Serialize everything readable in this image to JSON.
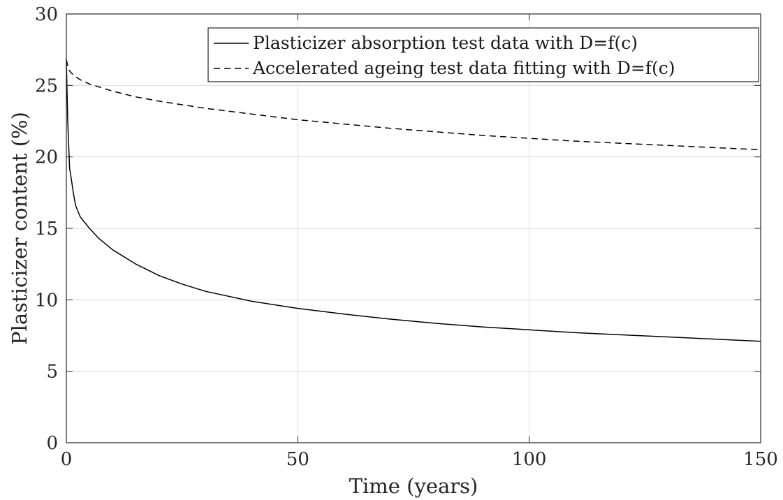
{
  "chart_data": {
    "type": "line",
    "xlabel": "Time (years)",
    "ylabel": "Plasticizer content (%)",
    "xlim": [
      0,
      150
    ],
    "ylim": [
      0,
      30
    ],
    "xticks": [
      0,
      50,
      100,
      150
    ],
    "yticks": [
      0,
      5,
      10,
      15,
      20,
      25,
      30
    ],
    "grid": true,
    "legend_position": "top-right",
    "series": [
      {
        "name": "Plasticizer absorption test data with D=f(c)",
        "style": "solid",
        "color": "#000000",
        "x": [
          0,
          0.3,
          0.7,
          1,
          1.5,
          2,
          3,
          5,
          7,
          10,
          15,
          20,
          25,
          30,
          40,
          50,
          60,
          70,
          80,
          90,
          100,
          110,
          120,
          130,
          140,
          150
        ],
        "y": [
          26.8,
          22.5,
          19.2,
          18.6,
          17.5,
          16.6,
          15.8,
          15.0,
          14.3,
          13.5,
          12.5,
          11.7,
          11.1,
          10.6,
          9.9,
          9.4,
          9.0,
          8.65,
          8.35,
          8.1,
          7.9,
          7.7,
          7.55,
          7.4,
          7.25,
          7.1
        ]
      },
      {
        "name": "Accelerated ageing test data fitting with D=f(c)",
        "style": "dashed",
        "color": "#000000",
        "x": [
          0,
          0.5,
          1,
          2,
          3,
          5,
          10,
          15,
          20,
          30,
          40,
          50,
          60,
          70,
          80,
          90,
          100,
          110,
          120,
          130,
          140,
          150
        ],
        "y": [
          26.8,
          26.1,
          25.9,
          25.6,
          25.4,
          25.1,
          24.6,
          24.2,
          23.9,
          23.4,
          23.0,
          22.6,
          22.3,
          22.0,
          21.75,
          21.5,
          21.3,
          21.1,
          20.95,
          20.8,
          20.65,
          20.5
        ]
      }
    ]
  }
}
